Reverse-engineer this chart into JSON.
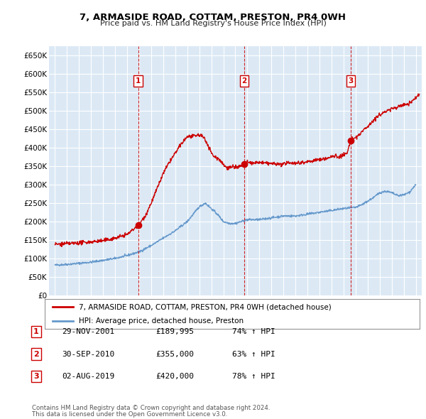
{
  "title": "7, ARMASIDE ROAD, COTTAM, PRESTON, PR4 0WH",
  "subtitle": "Price paid vs. HM Land Registry's House Price Index (HPI)",
  "yticks": [
    0,
    50000,
    100000,
    150000,
    200000,
    250000,
    300000,
    350000,
    400000,
    450000,
    500000,
    550000,
    600000,
    650000
  ],
  "xlim_start": 1994.5,
  "xlim_end": 2025.5,
  "ylim": [
    0,
    675000
  ],
  "bg_color": "#dce9f5",
  "grid_color": "#ffffff",
  "sale_years": [
    2001.917,
    2010.75,
    2019.583
  ],
  "sale_prices": [
    189995,
    355000,
    420000
  ],
  "sale_labels": [
    "1",
    "2",
    "3"
  ],
  "sale_info": [
    {
      "label": "1",
      "date": "29-NOV-2001",
      "price": "£189,995",
      "hpi": "74% ↑ HPI"
    },
    {
      "label": "2",
      "date": "30-SEP-2010",
      "price": "£355,000",
      "hpi": "63% ↑ HPI"
    },
    {
      "label": "3",
      "date": "02-AUG-2019",
      "price": "£420,000",
      "hpi": "78% ↑ HPI"
    }
  ],
  "legend_line1": "7, ARMASIDE ROAD, COTTAM, PRESTON, PR4 0WH (detached house)",
  "legend_line2": "HPI: Average price, detached house, Preston",
  "footer1": "Contains HM Land Registry data © Crown copyright and database right 2024.",
  "footer2": "This data is licensed under the Open Government Licence v3.0.",
  "red_color": "#cc0000",
  "blue_color": "#6699cc",
  "vline_color": "#cc0000",
  "hpi_anchors_x": [
    1995,
    1996,
    1997,
    1998,
    1999,
    2000,
    2001,
    2002,
    2003,
    2004,
    2005,
    2006,
    2007,
    2007.5,
    2008,
    2008.5,
    2009,
    2009.5,
    2010,
    2011,
    2012,
    2013,
    2014,
    2015,
    2016,
    2017,
    2018,
    2019,
    2020,
    2020.5,
    2021,
    2021.5,
    2022,
    2022.5,
    2023,
    2023.5,
    2024,
    2024.5,
    2025
  ],
  "hpi_anchors_y": [
    82000,
    84000,
    87000,
    90000,
    95000,
    100000,
    108000,
    118000,
    135000,
    155000,
    175000,
    200000,
    240000,
    250000,
    235000,
    220000,
    200000,
    195000,
    195000,
    205000,
    205000,
    210000,
    215000,
    215000,
    220000,
    225000,
    230000,
    235000,
    238000,
    245000,
    255000,
    265000,
    278000,
    282000,
    278000,
    270000,
    272000,
    280000,
    300000
  ],
  "red_anchors_x": [
    1995,
    1996,
    1997,
    1998,
    1999,
    2000,
    2001,
    2001.917,
    2002.5,
    2003,
    2003.5,
    2004,
    2004.5,
    2005,
    2005.5,
    2006,
    2006.5,
    2007,
    2007.3,
    2007.6,
    2007.9,
    2008.1,
    2008.3,
    2008.6,
    2008.9,
    2009.1,
    2009.5,
    2009.8,
    2010,
    2010.3,
    2010.75,
    2011,
    2011.5,
    2012,
    2012.5,
    2013,
    2013.5,
    2014,
    2014.3,
    2014.6,
    2015,
    2015.5,
    2016,
    2016.5,
    2017,
    2017.5,
    2018,
    2018.3,
    2018.6,
    2019,
    2019.3,
    2019.583,
    2019.9,
    2020.3,
    2020.6,
    2021,
    2021.3,
    2021.6,
    2022,
    2022.3,
    2022.6,
    2023,
    2023.3,
    2023.6,
    2024,
    2024.3,
    2024.6,
    2025,
    2025.3
  ],
  "red_anchors_y": [
    138000,
    140000,
    142000,
    145000,
    148000,
    155000,
    165000,
    189995,
    215000,
    250000,
    290000,
    330000,
    360000,
    385000,
    410000,
    430000,
    430000,
    435000,
    430000,
    415000,
    395000,
    380000,
    375000,
    370000,
    360000,
    350000,
    345000,
    350000,
    345000,
    348000,
    355000,
    360000,
    358000,
    360000,
    358000,
    357000,
    355000,
    355000,
    358000,
    360000,
    358000,
    360000,
    362000,
    365000,
    368000,
    370000,
    375000,
    378000,
    375000,
    380000,
    385000,
    420000,
    425000,
    435000,
    445000,
    458000,
    468000,
    478000,
    488000,
    495000,
    500000,
    505000,
    508000,
    512000,
    516000,
    518000,
    522000,
    535000,
    545000
  ]
}
